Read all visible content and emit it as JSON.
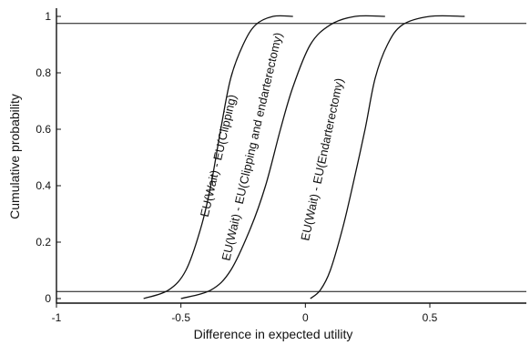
{
  "chart_data": {
    "type": "line",
    "title": "",
    "xlabel": "Difference in expected utility",
    "ylabel": "Cumulative probability",
    "xlim": [
      -1,
      0.75
    ],
    "ylim": [
      0,
      1
    ],
    "x_ticks": [
      {
        "value": -1,
        "label": "-1"
      },
      {
        "value": -0.5,
        "label": "-0.5"
      },
      {
        "value": 0,
        "label": "0"
      },
      {
        "value": 0.5,
        "label": "0.5"
      }
    ],
    "y_ticks": [
      {
        "value": 0,
        "label": "0"
      },
      {
        "value": 0.2,
        "label": "0.2"
      },
      {
        "value": 0.4,
        "label": "0.4"
      },
      {
        "value": 0.6,
        "label": "0.6"
      },
      {
        "value": 0.8,
        "label": "0.8"
      },
      {
        "value": 1,
        "label": "1"
      }
    ],
    "reference_lines_y": [
      0.025,
      0.975
    ],
    "grid": false,
    "series": [
      {
        "label": "EU(Wait) - EU(Clipping)",
        "points": [
          [
            -0.65,
            0.0
          ],
          [
            -0.55,
            0.03
          ],
          [
            -0.48,
            0.1
          ],
          [
            -0.42,
            0.25
          ],
          [
            -0.38,
            0.4
          ],
          [
            -0.34,
            0.6
          ],
          [
            -0.3,
            0.78
          ],
          [
            -0.25,
            0.9
          ],
          [
            -0.2,
            0.97
          ],
          [
            -0.13,
            1.0
          ],
          [
            -0.05,
            1.0
          ]
        ]
      },
      {
        "label": "EU(Wait) - EU(Clipping and endarterectomy)",
        "points": [
          [
            -0.5,
            0.0
          ],
          [
            -0.38,
            0.03
          ],
          [
            -0.3,
            0.1
          ],
          [
            -0.22,
            0.25
          ],
          [
            -0.16,
            0.4
          ],
          [
            -0.1,
            0.6
          ],
          [
            -0.05,
            0.75
          ],
          [
            0.02,
            0.9
          ],
          [
            0.1,
            0.97
          ],
          [
            0.2,
            1.0
          ],
          [
            0.32,
            1.0
          ]
        ]
      },
      {
        "label": "EU(Wait) - EU(Endarterectomy)",
        "points": [
          [
            0.02,
            0.0
          ],
          [
            0.06,
            0.03
          ],
          [
            0.1,
            0.1
          ],
          [
            0.15,
            0.25
          ],
          [
            0.19,
            0.4
          ],
          [
            0.24,
            0.6
          ],
          [
            0.28,
            0.78
          ],
          [
            0.33,
            0.9
          ],
          [
            0.39,
            0.97
          ],
          [
            0.5,
            1.0
          ],
          [
            0.64,
            1.0
          ]
        ]
      }
    ]
  }
}
